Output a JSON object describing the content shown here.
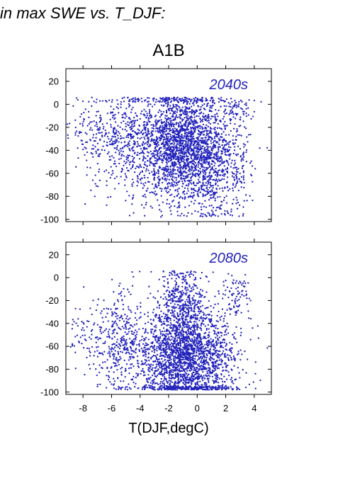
{
  "heading": "in max SWE vs. T_DJF:",
  "scenario": "A1B",
  "xlabel": "T(DJF,degC)",
  "chart_data": [
    {
      "type": "scatter",
      "panel_label": "2040s",
      "xlim": [
        -9.2,
        5.2
      ],
      "ylim": [
        -102,
        31
      ],
      "xticks": [
        -8,
        -6,
        -4,
        -2,
        0,
        2,
        4
      ],
      "yticks": [
        20,
        0,
        -20,
        -40,
        -60,
        -80,
        -100
      ],
      "point_color": "#2222bb",
      "clusters": [
        {
          "cx": -1.2,
          "cy": -35,
          "sx": 1.6,
          "sy": 25,
          "n": 2200
        },
        {
          "cx": -5.5,
          "cy": -30,
          "sx": 1.2,
          "sy": 20,
          "n": 350
        },
        {
          "cx": 1.5,
          "cy": -55,
          "sx": 1.1,
          "sy": 22,
          "n": 500
        },
        {
          "cx": -8.0,
          "cy": -25,
          "sx": 0.7,
          "sy": 18,
          "n": 70
        },
        {
          "cx": 2.8,
          "cy": -5,
          "sx": 0.6,
          "sy": 6,
          "n": 60
        }
      ],
      "y_range": [
        -98,
        6
      ]
    },
    {
      "type": "scatter",
      "panel_label": "2080s",
      "xlim": [
        -9.2,
        5.2
      ],
      "ylim": [
        -102,
        31
      ],
      "xticks": [
        -8,
        -6,
        -4,
        -2,
        0,
        2,
        4
      ],
      "yticks": [
        20,
        0,
        -20,
        -40,
        -60,
        -80,
        -100
      ],
      "point_color": "#2222bb",
      "clusters": [
        {
          "cx": -0.8,
          "cy": -70,
          "sx": 1.7,
          "sy": 22,
          "n": 2200
        },
        {
          "cx": -1.0,
          "cy": -25,
          "sx": 0.9,
          "sy": 18,
          "n": 450
        },
        {
          "cx": -5.5,
          "cy": -55,
          "sx": 0.9,
          "sy": 22,
          "n": 350
        },
        {
          "cx": 2.8,
          "cy": -15,
          "sx": 0.5,
          "sy": 10,
          "n": 80
        },
        {
          "cx": -8.0,
          "cy": -50,
          "sx": 0.7,
          "sy": 15,
          "n": 60
        }
      ],
      "y_range": [
        -98,
        6
      ]
    }
  ]
}
